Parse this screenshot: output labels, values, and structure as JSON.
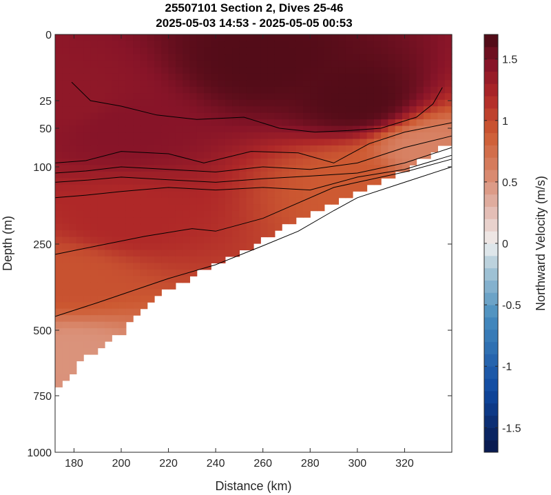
{
  "chart_data": {
    "type": "heatmap",
    "title": "25507101 Section 2, Dives 25-46",
    "subtitle": "2025-05-03 14:53 - 2025-05-05 00:53",
    "xlabel": "Distance (km)",
    "ylabel": "Depth (m)",
    "xlim": [
      172,
      340
    ],
    "x_ticks": [
      180,
      200,
      220,
      240,
      260,
      280,
      300,
      320
    ],
    "y_ticks": [
      0,
      25,
      50,
      100,
      250,
      500,
      750,
      1000
    ],
    "y_scale": "nonlinear (stretched near surface)",
    "y_reversed": true,
    "colorbar": {
      "label": "Northward Velocity (m/s)",
      "range": [
        -1.7,
        1.7
      ],
      "ticks": [
        -1.5,
        -1,
        -0.5,
        0,
        0.5,
        1,
        1.5
      ],
      "colormap": "diverging blue-white-red"
    },
    "bottom_depth_profile": {
      "x": [
        172,
        180,
        186,
        200,
        210,
        220,
        240,
        260,
        280,
        300,
        320,
        330,
        336
      ],
      "depth": [
        720,
        650,
        600,
        510,
        430,
        380,
        310,
        240,
        190,
        150,
        105,
        85,
        75
      ]
    },
    "velocity_samples": [
      {
        "x": 180,
        "depth": 25,
        "v": 1.4
      },
      {
        "x": 200,
        "depth": 50,
        "v": 1.45
      },
      {
        "x": 260,
        "depth": 10,
        "v": 1.65
      },
      {
        "x": 300,
        "depth": 25,
        "v": 1.65
      },
      {
        "x": 200,
        "depth": 200,
        "v": 1.2
      },
      {
        "x": 180,
        "depth": 350,
        "v": 0.95
      },
      {
        "x": 180,
        "depth": 600,
        "v": 0.5
      },
      {
        "x": 300,
        "depth": 130,
        "v": 0.9
      },
      {
        "x": 330,
        "depth": 80,
        "v": 0.6
      }
    ],
    "contour_lines": [
      {
        "x": [
          179,
          187,
          200,
          215,
          232,
          252,
          267,
          282,
          296,
          310,
          325,
          332,
          336
        ],
        "depth": [
          18,
          25,
          30,
          38,
          42,
          40,
          50,
          55,
          53,
          50,
          40,
          28,
          20
        ]
      },
      {
        "x": [
          172,
          185,
          200,
          220,
          235,
          255,
          275,
          290,
          305,
          320,
          340
        ],
        "depth": [
          95,
          92,
          80,
          83,
          95,
          80,
          82,
          95,
          70,
          55,
          45
        ]
      },
      {
        "x": [
          172,
          185,
          200,
          220,
          240,
          260,
          280,
          300,
          320,
          340
        ],
        "depth": [
          112,
          108,
          100,
          105,
          110,
          100,
          105,
          95,
          75,
          60
        ]
      },
      {
        "x": [
          172,
          185,
          200,
          220,
          240,
          260,
          280,
          300,
          320,
          340
        ],
        "depth": [
          130,
          126,
          120,
          125,
          130,
          123,
          118,
          112,
          95,
          75
        ]
      },
      {
        "x": [
          172,
          185,
          200,
          220,
          240,
          260,
          280,
          300,
          320,
          340
        ],
        "depth": [
          160,
          155,
          148,
          140,
          145,
          140,
          145,
          120,
          105,
          85
        ]
      },
      {
        "x": [
          172,
          190,
          210,
          230,
          240,
          260,
          275,
          290,
          300,
          320,
          340
        ],
        "depth": [
          280,
          255,
          235,
          220,
          225,
          200,
          170,
          140,
          130,
          110,
          90
        ]
      },
      {
        "x": [
          172,
          190,
          205,
          220,
          240,
          260,
          275,
          290,
          300,
          320,
          340
        ],
        "depth": [
          460,
          420,
          385,
          350,
          310,
          255,
          225,
          185,
          160,
          130,
          100
        ]
      }
    ]
  }
}
